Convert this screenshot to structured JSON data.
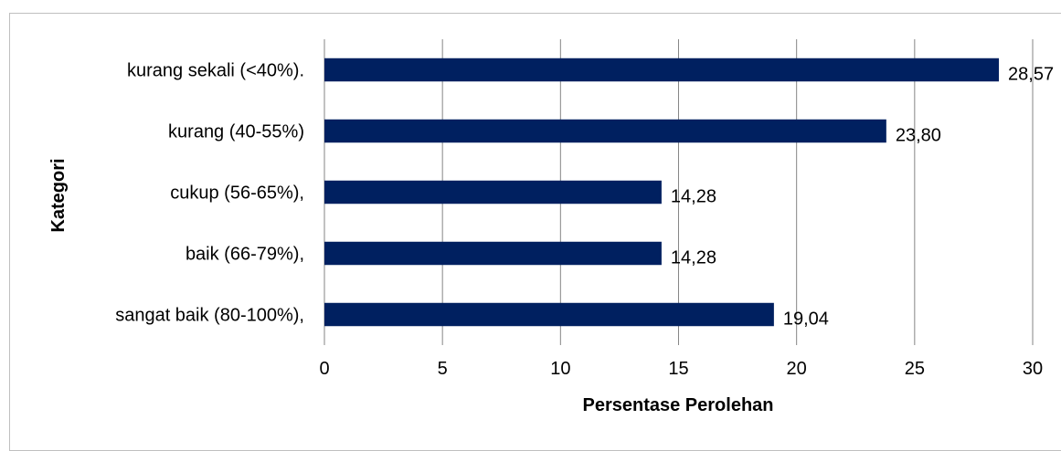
{
  "chart_data": {
    "type": "bar",
    "orientation": "horizontal",
    "title": "",
    "xlabel": "Persentase Perolehan",
    "ylabel": "Kategori",
    "categories": [
      "kurang sekali (<40%).",
      "kurang (40-55%)",
      "cukup (56-65%),",
      "baik (66-79%),",
      "sangat baik (80-100%),"
    ],
    "values": [
      28.57,
      23.8,
      14.28,
      14.28,
      19.04
    ],
    "data_labels": [
      "28,57",
      "23,80",
      "14,28",
      "14,28",
      "19,04"
    ],
    "xlim": [
      0,
      30
    ],
    "xticks": [
      0,
      5,
      10,
      15,
      20,
      25,
      30
    ],
    "xtick_labels": [
      "0",
      "5",
      "10",
      "15",
      "20",
      "25",
      "30"
    ],
    "grid": "vertical",
    "legend": "none",
    "bar_color": "#002060",
    "grid_color": "#868686"
  }
}
